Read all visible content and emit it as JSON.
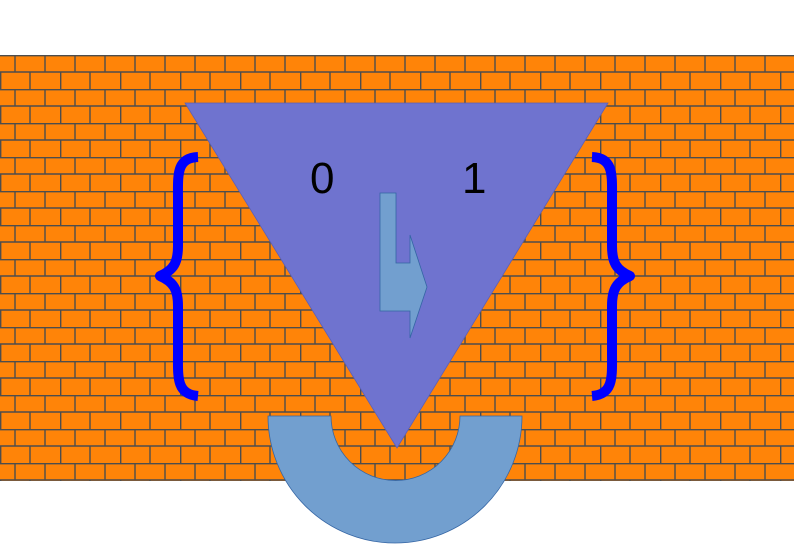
{
  "labels": {
    "left": "0",
    "right": "1"
  },
  "colors": {
    "background": "#ffffff",
    "wall_fill": "#ff8408",
    "mortar": "#4d4d4d",
    "triangle": "#6f73cf",
    "arrow": "#729fcf",
    "half_ring": "#729fcf",
    "braces": "#0000ff"
  },
  "shapes": {
    "wall": "brick-wall",
    "triangle": "inverted-triangle",
    "arrow": "bent-arrow",
    "ring": "half-ring",
    "left_brace": "left-curly-brace",
    "right_brace": "right-curly-brace"
  }
}
